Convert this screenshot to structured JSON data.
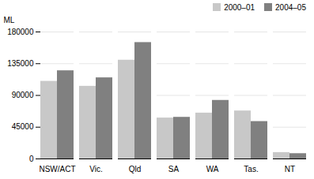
{
  "chart_data": {
    "type": "bar",
    "categories": [
      "NSW/ACT",
      "Vic.",
      "Qld",
      "SA",
      "WA",
      "Tas.",
      "NT"
    ],
    "series": [
      {
        "name": "2000–01",
        "color": "#c8c8c8",
        "values": [
          110000,
          103000,
          140000,
          58000,
          65000,
          68000,
          9000
        ]
      },
      {
        "name": "2004–05",
        "color": "#808080",
        "values": [
          125000,
          115000,
          165000,
          59000,
          83000,
          53000,
          7500
        ]
      }
    ],
    "ylabel": "ML",
    "ylim": [
      0,
      180000
    ],
    "yticks": [
      0,
      45000,
      90000,
      135000,
      180000
    ],
    "grid": true,
    "legend": "upper right"
  }
}
